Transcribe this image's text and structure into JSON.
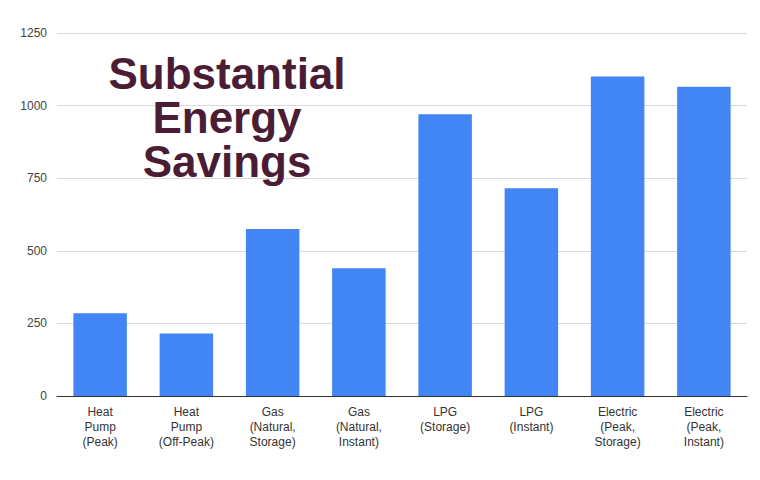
{
  "chart_data": {
    "type": "bar",
    "title": "Substantial Energy Savings",
    "categories": [
      "Heat Pump (Peak)",
      "Heat Pump (Off-Peak)",
      "Gas (Natural, Storage)",
      "Gas (Natural, Instant)",
      "LPG (Storage)",
      "LPG (Instant)",
      "Electric (Peak, Storage)",
      "Electric (Peak, Instant)"
    ],
    "values": [
      285,
      215,
      575,
      440,
      970,
      715,
      1100,
      1065
    ],
    "color": "#4285f4",
    "ylim": [
      0,
      1250
    ],
    "yticks": [
      0,
      250,
      500,
      750,
      1000,
      1250
    ],
    "grid": true
  }
}
